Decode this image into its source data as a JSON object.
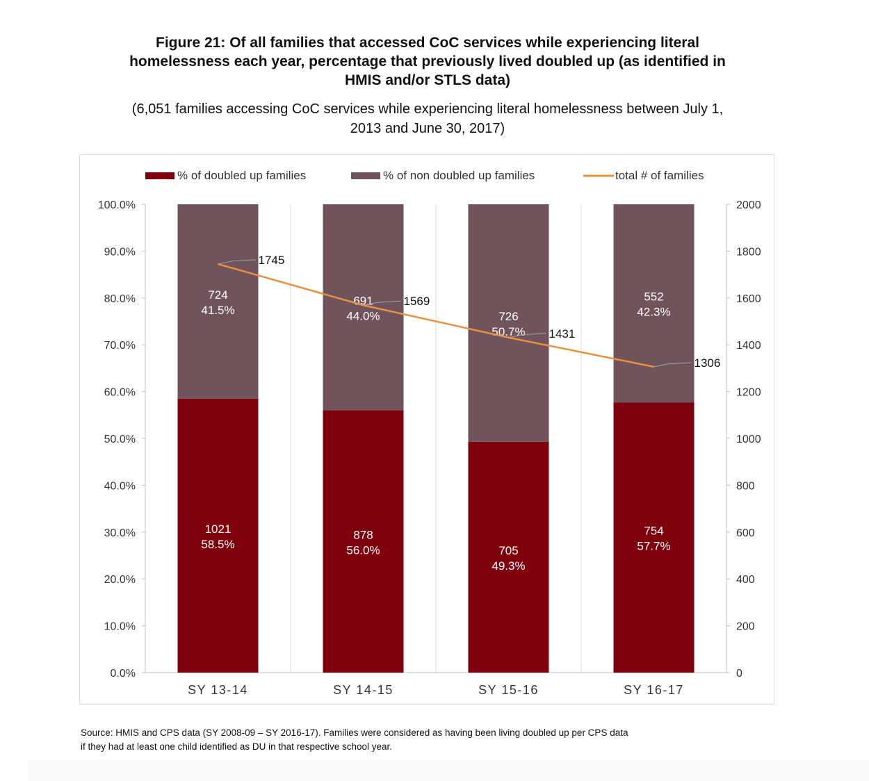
{
  "figure": {
    "title_line1": "Figure 21: Of all families that accessed CoC services while experiencing literal",
    "title_line2": "homelessness each year, percentage that previously lived doubled up (as identified in",
    "title_line3": "HMIS and/or STLS data)",
    "subtitle_line1": "(6,051 families accessing CoC services while experiencing literal homelessness between July 1,",
    "subtitle_line2": "2013 and June 30, 2017)",
    "source_line1": "Source: HMIS and CPS data (SY 2008-09 – SY 2016-17). Families were considered as having been living doubled up per CPS data",
    "source_line2": "if they had at least one child identified as DU in that respective school year."
  },
  "colors": {
    "doubled": "#7f000d",
    "non_doubled": "#71535c",
    "line": "#e8913f",
    "grid": "#d9d9d9",
    "axis_text": "#333333"
  },
  "chart_data": {
    "type": "bar",
    "stacked": true,
    "categories": [
      "SY 13-14",
      "SY 14-15",
      "SY 15-16",
      "SY 16-17"
    ],
    "series": [
      {
        "name": "% of doubled up families",
        "values": [
          58.5,
          56.0,
          49.3,
          57.7
        ],
        "counts": [
          1021,
          878,
          705,
          754
        ],
        "labels_pct": [
          "58.5%",
          "56.0%",
          "49.3%",
          "57.7%"
        ]
      },
      {
        "name": "% of non doubled up families",
        "values": [
          41.5,
          44.0,
          50.7,
          42.3
        ],
        "counts": [
          724,
          691,
          726,
          552
        ],
        "labels_pct": [
          "41.5%",
          "44.0%",
          "50.7%",
          "42.3%"
        ]
      },
      {
        "name": "total # of families",
        "type": "line",
        "axis": "right",
        "values": [
          1745,
          1569,
          1431,
          1306
        ]
      }
    ],
    "ylim_left": [
      0,
      100
    ],
    "ylim_right": [
      0,
      2000
    ],
    "yticks_left": [
      "0.0%",
      "10.0%",
      "20.0%",
      "30.0%",
      "40.0%",
      "50.0%",
      "60.0%",
      "70.0%",
      "80.0%",
      "90.0%",
      "100.0%"
    ],
    "yticks_right": [
      "0",
      "200",
      "400",
      "600",
      "800",
      "1000",
      "1200",
      "1400",
      "1600",
      "1800",
      "2000"
    ],
    "legend": "top",
    "grid": "vertical"
  }
}
